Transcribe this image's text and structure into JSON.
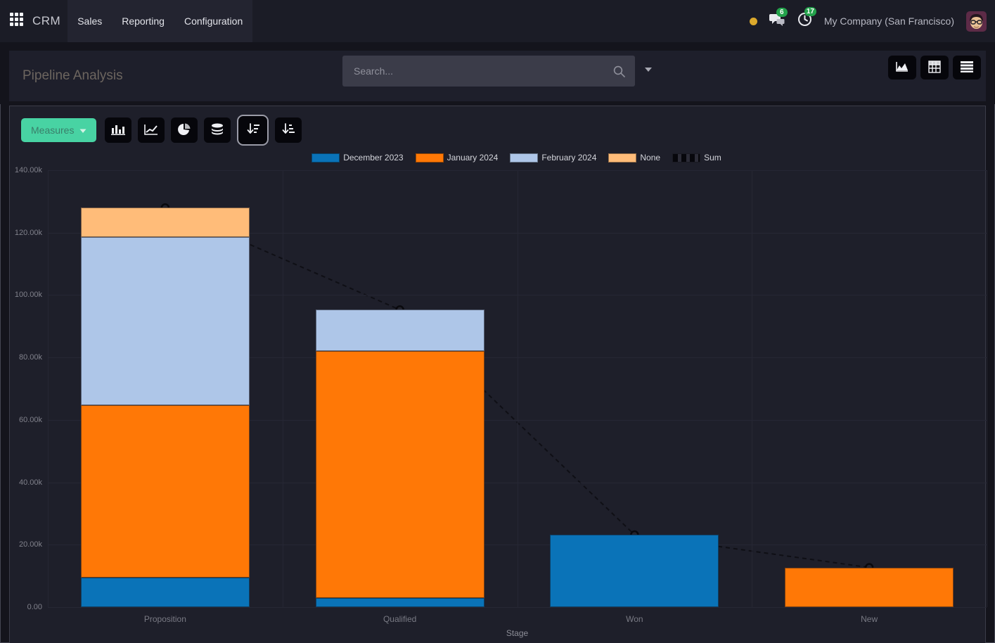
{
  "navbar": {
    "app_name": "CRM",
    "menus": [
      {
        "label": "Sales"
      },
      {
        "label": "Reporting"
      },
      {
        "label": "Configuration"
      }
    ],
    "systray": {
      "chat_badge": "6",
      "activity_badge": "17",
      "company": "My Company (San Francisco)"
    }
  },
  "control_panel": {
    "title": "Pipeline Analysis",
    "search": {
      "placeholder": "Search...",
      "value": ""
    },
    "view_switcher": [
      {
        "name": "graph-view",
        "icon": "area-chart-icon"
      },
      {
        "name": "pivot-view",
        "icon": "pivot-table-icon"
      },
      {
        "name": "list-view",
        "icon": "list-icon"
      }
    ]
  },
  "toolbar": {
    "measures_label": "Measures",
    "chart_buttons": [
      {
        "name": "bar-chart",
        "icon": "bar-chart-icon",
        "active": false
      },
      {
        "name": "line-chart",
        "icon": "line-chart-icon",
        "active": false
      },
      {
        "name": "pie-chart",
        "icon": "pie-chart-icon",
        "active": false
      },
      {
        "name": "stacked",
        "icon": "stacked-icon",
        "active": false
      },
      {
        "name": "sort-descending",
        "icon": "sort-desc-icon",
        "active": true
      },
      {
        "name": "sort-ascending",
        "icon": "sort-asc-icon",
        "active": false
      }
    ]
  },
  "chart_data": {
    "type": "bar",
    "stacked": true,
    "title": "",
    "xlabel": "Stage",
    "ylabel": "",
    "categories": [
      "Proposition",
      "Qualified",
      "Won",
      "New"
    ],
    "series": [
      {
        "name": "December 2023",
        "color": "#0a73b8",
        "values": [
          9500,
          3000,
          23200,
          0
        ]
      },
      {
        "name": "January 2024",
        "color": "#ff7806",
        "values": [
          55200,
          79100,
          0,
          12700
        ]
      },
      {
        "name": "February 2024",
        "color": "#aec6e8",
        "values": [
          53800,
          13200,
          0,
          0
        ]
      },
      {
        "name": "None",
        "color": "#ffbc79",
        "values": [
          9500,
          0,
          0,
          0
        ]
      }
    ],
    "line_series": {
      "name": "Sum",
      "style": "dashed",
      "color": "#0d0d13",
      "values": [
        128000,
        95300,
        23200,
        12700
      ]
    },
    "ylim": [
      0,
      140000
    ],
    "yticks": [
      "140.00k",
      "120.00k",
      "100.00k",
      "80.00k",
      "60.00k",
      "40.00k",
      "20.00k",
      "0.00"
    ],
    "grid": true,
    "legend_position": "top"
  },
  "colors": {
    "accent_green": "#48d3a3",
    "badge_green": "#23a24b",
    "activity_amber": "#dca92c"
  }
}
